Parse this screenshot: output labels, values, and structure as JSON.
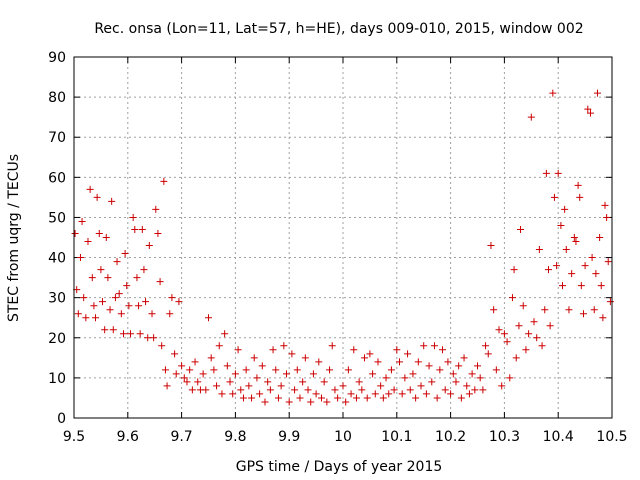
{
  "colors": {
    "series": "#cc0000",
    "grid": "#a0a0a0",
    "axis": "#000000"
  },
  "chart_data": {
    "type": "scatter",
    "title": "Rec. onsa (Lon=11, Lat=57, h=HE), days 009-010, 2015, window 002",
    "xlabel": "GPS time / Days of year 2015",
    "ylabel": "STEC from uqrg / TECUs",
    "xlim": [
      9.5,
      10.5
    ],
    "ylim": [
      0,
      90
    ],
    "x_ticks": [
      9.5,
      9.6,
      9.7,
      9.8,
      9.9,
      10,
      10.1,
      10.2,
      10.3,
      10.4,
      10.5
    ],
    "x_tick_labels": [
      "9.5",
      "9.6",
      "9.7",
      "9.8",
      "9.9",
      "10",
      "10.1",
      "10.2",
      "10.3",
      "10.4",
      "10.5"
    ],
    "y_ticks": [
      0,
      10,
      20,
      30,
      40,
      50,
      60,
      70,
      80,
      90
    ],
    "y_tick_labels": [
      "0",
      "10",
      "20",
      "30",
      "40",
      "50",
      "60",
      "70",
      "80",
      "90"
    ],
    "grid": true,
    "marker": "+",
    "series": [
      {
        "name": "STEC",
        "points": [
          [
            9.502,
            46
          ],
          [
            9.505,
            32
          ],
          [
            9.508,
            26
          ],
          [
            9.512,
            40
          ],
          [
            9.515,
            49
          ],
          [
            9.518,
            30
          ],
          [
            9.522,
            25
          ],
          [
            9.526,
            44
          ],
          [
            9.53,
            57
          ],
          [
            9.534,
            35
          ],
          [
            9.537,
            28
          ],
          [
            9.54,
            25
          ],
          [
            9.543,
            55
          ],
          [
            9.547,
            46
          ],
          [
            9.55,
            37
          ],
          [
            9.553,
            29
          ],
          [
            9.557,
            22
          ],
          [
            9.56,
            45
          ],
          [
            9.563,
            35
          ],
          [
            9.567,
            27
          ],
          [
            9.57,
            54
          ],
          [
            9.573,
            22
          ],
          [
            9.577,
            30
          ],
          [
            9.58,
            39
          ],
          [
            9.584,
            31
          ],
          [
            9.588,
            26
          ],
          [
            9.592,
            21
          ],
          [
            9.595,
            41
          ],
          [
            9.598,
            33
          ],
          [
            9.602,
            28
          ],
          [
            9.605,
            21
          ],
          [
            9.61,
            50
          ],
          [
            9.613,
            47
          ],
          [
            9.617,
            35
          ],
          [
            9.62,
            28
          ],
          [
            9.623,
            21
          ],
          [
            9.627,
            47
          ],
          [
            9.63,
            37
          ],
          [
            9.633,
            29
          ],
          [
            9.637,
            20
          ],
          [
            9.64,
            43
          ],
          [
            9.645,
            26
          ],
          [
            9.648,
            20
          ],
          [
            9.652,
            52
          ],
          [
            9.656,
            46
          ],
          [
            9.66,
            34
          ],
          [
            9.663,
            18
          ],
          [
            9.667,
            59
          ],
          [
            9.67,
            12
          ],
          [
            9.673,
            8
          ],
          [
            9.678,
            26
          ],
          [
            9.682,
            30
          ],
          [
            9.687,
            16
          ],
          [
            9.69,
            11
          ],
          [
            9.695,
            29
          ],
          [
            9.7,
            13
          ],
          [
            9.705,
            10
          ],
          [
            9.71,
            9
          ],
          [
            9.715,
            12
          ],
          [
            9.72,
            7
          ],
          [
            9.725,
            14
          ],
          [
            9.73,
            9
          ],
          [
            9.735,
            7
          ],
          [
            9.74,
            11
          ],
          [
            9.745,
            7
          ],
          [
            9.75,
            25
          ],
          [
            9.755,
            15
          ],
          [
            9.76,
            12
          ],
          [
            9.765,
            8
          ],
          [
            9.77,
            18
          ],
          [
            9.775,
            6
          ],
          [
            9.78,
            21
          ],
          [
            9.785,
            13
          ],
          [
            9.79,
            9
          ],
          [
            9.795,
            6
          ],
          [
            9.8,
            11
          ],
          [
            9.805,
            17
          ],
          [
            9.81,
            7
          ],
          [
            9.815,
            5
          ],
          [
            9.82,
            12
          ],
          [
            9.825,
            8
          ],
          [
            9.83,
            5
          ],
          [
            9.835,
            15
          ],
          [
            9.84,
            10
          ],
          [
            9.845,
            6
          ],
          [
            9.85,
            13
          ],
          [
            9.855,
            4
          ],
          [
            9.86,
            9
          ],
          [
            9.865,
            7
          ],
          [
            9.87,
            17
          ],
          [
            9.875,
            12
          ],
          [
            9.88,
            5
          ],
          [
            9.885,
            8
          ],
          [
            9.89,
            18
          ],
          [
            9.895,
            11
          ],
          [
            9.9,
            4
          ],
          [
            9.905,
            16
          ],
          [
            9.91,
            7
          ],
          [
            9.915,
            12
          ],
          [
            9.92,
            5
          ],
          [
            9.925,
            9
          ],
          [
            9.93,
            15
          ],
          [
            9.935,
            7
          ],
          [
            9.94,
            4
          ],
          [
            9.945,
            11
          ],
          [
            9.95,
            6
          ],
          [
            9.955,
            14
          ],
          [
            9.96,
            5
          ],
          [
            9.965,
            9
          ],
          [
            9.97,
            4
          ],
          [
            9.975,
            12
          ],
          [
            9.98,
            18
          ],
          [
            9.985,
            7
          ],
          [
            9.99,
            5
          ],
          [
            10.0,
            8
          ],
          [
            10.005,
            4
          ],
          [
            10.01,
            12
          ],
          [
            10.015,
            6
          ],
          [
            10.02,
            17
          ],
          [
            10.025,
            5
          ],
          [
            10.03,
            9
          ],
          [
            10.035,
            7
          ],
          [
            10.04,
            15
          ],
          [
            10.045,
            5
          ],
          [
            10.05,
            16
          ],
          [
            10.055,
            11
          ],
          [
            10.06,
            6
          ],
          [
            10.065,
            14
          ],
          [
            10.07,
            8
          ],
          [
            10.075,
            5
          ],
          [
            10.08,
            10
          ],
          [
            10.085,
            6
          ],
          [
            10.09,
            12
          ],
          [
            10.095,
            7
          ],
          [
            10.1,
            17
          ],
          [
            10.105,
            14
          ],
          [
            10.11,
            6
          ],
          [
            10.115,
            10
          ],
          [
            10.12,
            16
          ],
          [
            10.125,
            7
          ],
          [
            10.13,
            11
          ],
          [
            10.135,
            5
          ],
          [
            10.14,
            14
          ],
          [
            10.145,
            8
          ],
          [
            10.15,
            18
          ],
          [
            10.155,
            6
          ],
          [
            10.16,
            13
          ],
          [
            10.165,
            9
          ],
          [
            10.17,
            18
          ],
          [
            10.175,
            5
          ],
          [
            10.18,
            12
          ],
          [
            10.185,
            17
          ],
          [
            10.19,
            7
          ],
          [
            10.195,
            14
          ],
          [
            10.2,
            6
          ],
          [
            10.205,
            11
          ],
          [
            10.21,
            9
          ],
          [
            10.215,
            13
          ],
          [
            10.22,
            5
          ],
          [
            10.225,
            15
          ],
          [
            10.23,
            8
          ],
          [
            10.235,
            6
          ],
          [
            10.24,
            11
          ],
          [
            10.245,
            7
          ],
          [
            10.25,
            13
          ],
          [
            10.255,
            10
          ],
          [
            10.26,
            7
          ],
          [
            10.265,
            18
          ],
          [
            10.27,
            16
          ],
          [
            10.275,
            43
          ],
          [
            10.28,
            27
          ],
          [
            10.285,
            12
          ],
          [
            10.29,
            22
          ],
          [
            10.295,
            8
          ],
          [
            10.3,
            21
          ],
          [
            10.305,
            19
          ],
          [
            10.31,
            10
          ],
          [
            10.315,
            30
          ],
          [
            10.318,
            37
          ],
          [
            10.322,
            15
          ],
          [
            10.327,
            23
          ],
          [
            10.33,
            47
          ],
          [
            10.335,
            28
          ],
          [
            10.34,
            17
          ],
          [
            10.345,
            21
          ],
          [
            10.35,
            75
          ],
          [
            10.355,
            24
          ],
          [
            10.36,
            20
          ],
          [
            10.365,
            42
          ],
          [
            10.37,
            18
          ],
          [
            10.375,
            27
          ],
          [
            10.378,
            61
          ],
          [
            10.382,
            37
          ],
          [
            10.385,
            23
          ],
          [
            10.39,
            81
          ],
          [
            10.393,
            55
          ],
          [
            10.397,
            38
          ],
          [
            10.4,
            61
          ],
          [
            10.405,
            48
          ],
          [
            10.408,
            33
          ],
          [
            10.412,
            52
          ],
          [
            10.415,
            42
          ],
          [
            10.42,
            27
          ],
          [
            10.425,
            36
          ],
          [
            10.43,
            45
          ],
          [
            10.433,
            44
          ],
          [
            10.437,
            58
          ],
          [
            10.44,
            55
          ],
          [
            10.443,
            33
          ],
          [
            10.447,
            26
          ],
          [
            10.45,
            38
          ],
          [
            10.455,
            77
          ],
          [
            10.46,
            76
          ],
          [
            10.463,
            40
          ],
          [
            10.467,
            27
          ],
          [
            10.47,
            36
          ],
          [
            10.473,
            81
          ],
          [
            10.477,
            45
          ],
          [
            10.48,
            33
          ],
          [
            10.483,
            25
          ],
          [
            10.487,
            53
          ],
          [
            10.49,
            50
          ],
          [
            10.493,
            39
          ],
          [
            10.497,
            29
          ]
        ]
      }
    ]
  }
}
